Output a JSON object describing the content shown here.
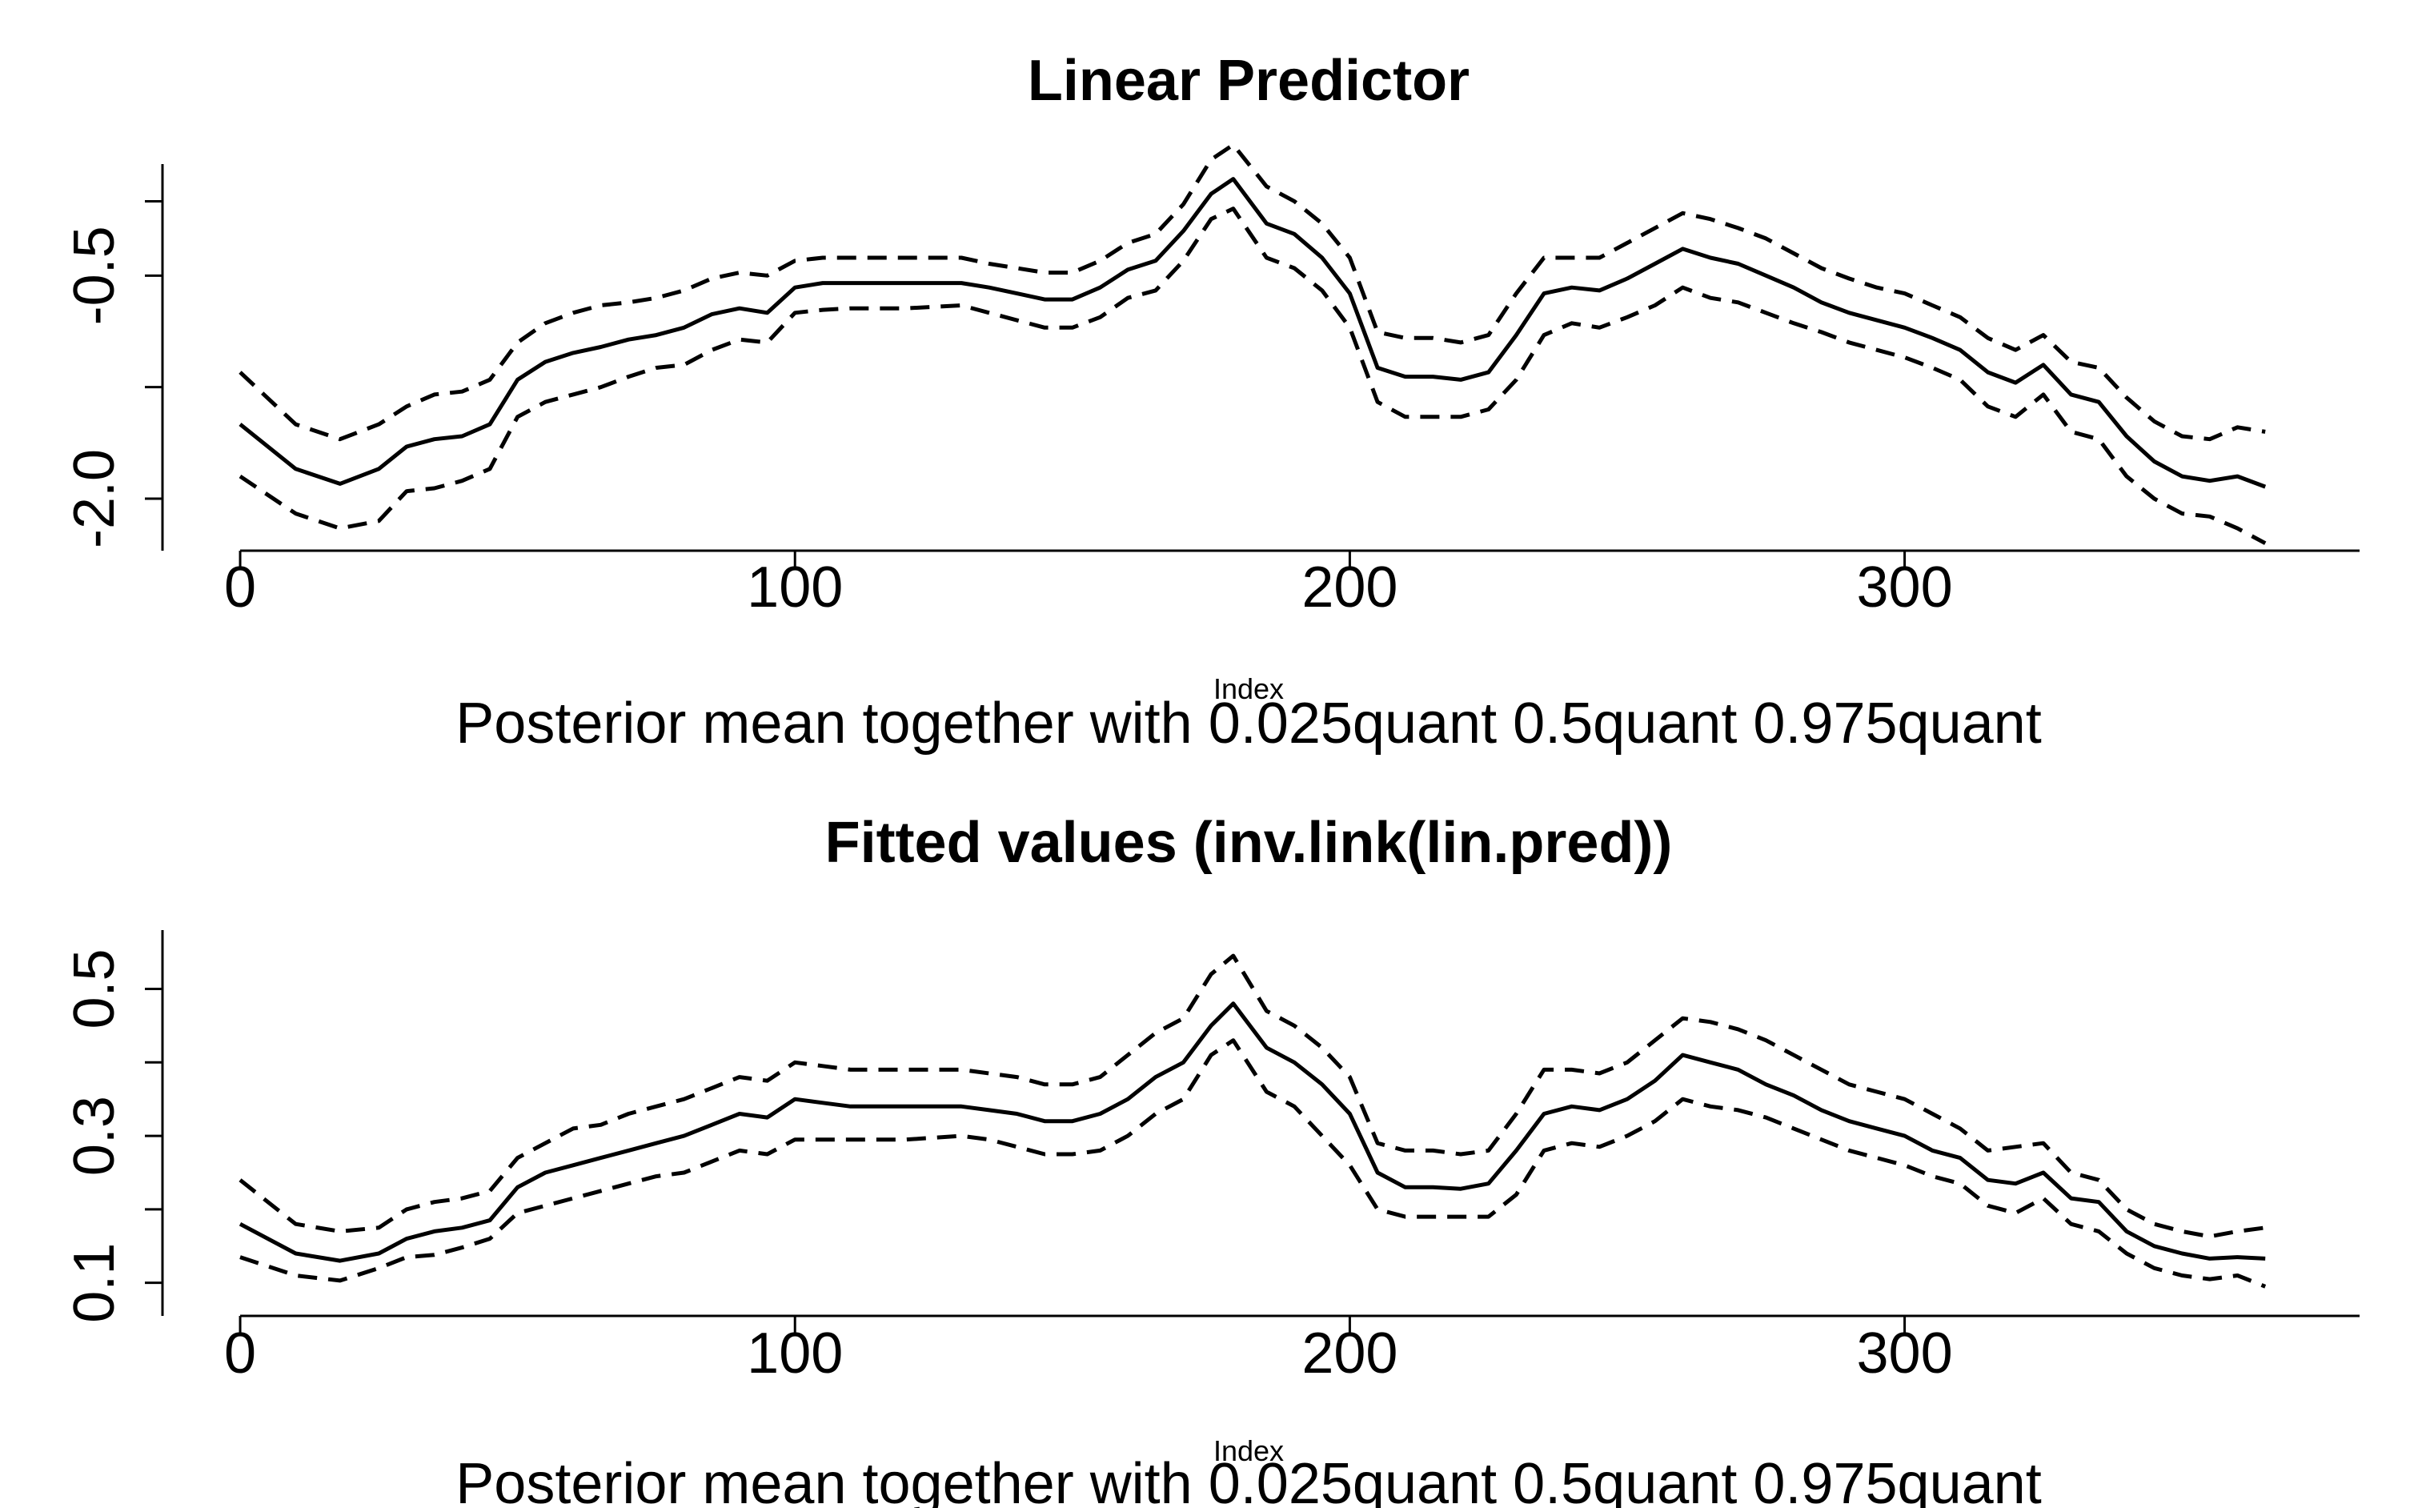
{
  "chart_data": [
    {
      "type": "line",
      "title": "Linear Predictor",
      "xlabel": "Index",
      "subtitle": "Posterior mean together with  0.025quant 0.5quant 0.975quant",
      "ylabel": "",
      "xlim": [
        -14,
        382
      ],
      "ylim": [
        -2.35,
        0.25
      ],
      "x_ticks": [
        0,
        100,
        200,
        300
      ],
      "y_ticks": [
        -2.0,
        -1.25,
        -0.5,
        0.0
      ],
      "y_tick_labels": [
        "-2.0",
        "",
        "-0.5",
        ""
      ],
      "grid": false,
      "x": [
        0,
        10,
        18,
        25,
        30,
        35,
        40,
        45,
        50,
        55,
        60,
        65,
        70,
        75,
        80,
        85,
        90,
        95,
        100,
        105,
        110,
        120,
        130,
        135,
        140,
        145,
        150,
        155,
        160,
        165,
        170,
        175,
        179,
        185,
        190,
        195,
        200,
        205,
        210,
        215,
        220,
        225,
        230,
        235,
        240,
        245,
        250,
        255,
        260,
        265,
        270,
        275,
        280,
        285,
        290,
        295,
        300,
        305,
        310,
        315,
        320,
        325,
        330,
        335,
        340,
        345,
        350,
        355,
        360,
        365
      ],
      "series": [
        {
          "name": "0.025quant",
          "style": "dashed",
          "values": [
            -1.85,
            -2.1,
            -2.2,
            -2.15,
            -1.95,
            -1.93,
            -1.88,
            -1.8,
            -1.45,
            -1.35,
            -1.3,
            -1.25,
            -1.18,
            -1.12,
            -1.1,
            -1.0,
            -0.93,
            -0.95,
            -0.75,
            -0.73,
            -0.72,
            -0.72,
            -0.7,
            -0.75,
            -0.8,
            -0.85,
            -0.85,
            -0.78,
            -0.65,
            -0.6,
            -0.4,
            -0.12,
            -0.05,
            -0.38,
            -0.45,
            -0.6,
            -0.85,
            -1.35,
            -1.45,
            -1.45,
            -1.45,
            -1.4,
            -1.2,
            -0.9,
            -0.82,
            -0.85,
            -0.78,
            -0.7,
            -0.58,
            -0.65,
            -0.68,
            -0.75,
            -0.82,
            -0.88,
            -0.95,
            -1.0,
            -1.05,
            -1.12,
            -1.2,
            -1.38,
            -1.45,
            -1.3,
            -1.55,
            -1.6,
            -1.85,
            -2.0,
            -2.1,
            -2.12,
            -2.2,
            -2.3
          ]
        },
        {
          "name": "0.5quant",
          "style": "solid",
          "values": [
            -1.5,
            -1.8,
            -1.9,
            -1.8,
            -1.65,
            -1.6,
            -1.58,
            -1.5,
            -1.2,
            -1.08,
            -1.02,
            -0.98,
            -0.93,
            -0.9,
            -0.85,
            -0.76,
            -0.72,
            -0.75,
            -0.58,
            -0.55,
            -0.55,
            -0.55,
            -0.55,
            -0.58,
            -0.62,
            -0.66,
            -0.66,
            -0.58,
            -0.46,
            -0.4,
            -0.2,
            0.05,
            0.15,
            -0.15,
            -0.22,
            -0.38,
            -0.62,
            -1.12,
            -1.18,
            -1.18,
            -1.2,
            -1.15,
            -0.9,
            -0.62,
            -0.58,
            -0.6,
            -0.52,
            -0.42,
            -0.32,
            -0.38,
            -0.42,
            -0.5,
            -0.58,
            -0.68,
            -0.75,
            -0.8,
            -0.85,
            -0.92,
            -1.0,
            -1.15,
            -1.22,
            -1.1,
            -1.3,
            -1.35,
            -1.58,
            -1.75,
            -1.85,
            -1.88,
            -1.85,
            -1.92
          ]
        },
        {
          "name": "0.975quant",
          "style": "dashed",
          "values": [
            -1.15,
            -1.5,
            -1.6,
            -1.5,
            -1.38,
            -1.3,
            -1.28,
            -1.2,
            -0.95,
            -0.82,
            -0.75,
            -0.7,
            -0.68,
            -0.65,
            -0.6,
            -0.52,
            -0.48,
            -0.5,
            -0.4,
            -0.38,
            -0.38,
            -0.38,
            -0.38,
            -0.42,
            -0.45,
            -0.48,
            -0.48,
            -0.4,
            -0.28,
            -0.22,
            -0.02,
            0.28,
            0.38,
            0.1,
            0.0,
            -0.15,
            -0.38,
            -0.88,
            -0.92,
            -0.92,
            -0.95,
            -0.9,
            -0.62,
            -0.38,
            -0.38,
            -0.38,
            -0.28,
            -0.18,
            -0.08,
            -0.12,
            -0.18,
            -0.25,
            -0.35,
            -0.45,
            -0.52,
            -0.58,
            -0.62,
            -0.7,
            -0.78,
            -0.92,
            -1.0,
            -0.9,
            -1.08,
            -1.12,
            -1.32,
            -1.48,
            -1.58,
            -1.6,
            -1.52,
            -1.55
          ]
        }
      ]
    },
    {
      "type": "line",
      "title": "Fitted values (inv.link(lin.pred))",
      "xlabel": "Index",
      "subtitle": "Posterior mean together with  0.025quant 0.5quant 0.975quant",
      "ylabel": "",
      "xlim": [
        -14,
        382
      ],
      "ylim": [
        0.055,
        0.58
      ],
      "x_ticks": [
        0,
        100,
        200,
        300
      ],
      "y_ticks": [
        0.1,
        0.2,
        0.3,
        0.4,
        0.5
      ],
      "y_tick_labels": [
        "0.1",
        "",
        "0.3",
        "",
        "0.5"
      ],
      "grid": false,
      "x": [
        0,
        10,
        18,
        25,
        30,
        35,
        40,
        45,
        50,
        55,
        60,
        65,
        70,
        75,
        80,
        85,
        90,
        95,
        100,
        105,
        110,
        120,
        130,
        135,
        140,
        145,
        150,
        155,
        160,
        165,
        170,
        175,
        179,
        185,
        190,
        195,
        200,
        205,
        210,
        215,
        220,
        225,
        230,
        235,
        240,
        245,
        250,
        255,
        260,
        265,
        270,
        275,
        280,
        285,
        290,
        295,
        300,
        305,
        310,
        315,
        320,
        325,
        330,
        335,
        340,
        345,
        350,
        355,
        360,
        365
      ],
      "series": [
        {
          "name": "0.025quant",
          "style": "dashed",
          "values": [
            0.135,
            0.11,
            0.103,
            0.12,
            0.135,
            0.138,
            0.148,
            0.16,
            0.195,
            0.205,
            0.215,
            0.225,
            0.235,
            0.245,
            0.25,
            0.265,
            0.28,
            0.275,
            0.295,
            0.295,
            0.295,
            0.295,
            0.3,
            0.295,
            0.285,
            0.275,
            0.275,
            0.28,
            0.3,
            0.33,
            0.35,
            0.41,
            0.43,
            0.36,
            0.34,
            0.3,
            0.26,
            0.2,
            0.19,
            0.19,
            0.19,
            0.19,
            0.22,
            0.28,
            0.29,
            0.285,
            0.3,
            0.32,
            0.35,
            0.34,
            0.335,
            0.325,
            0.31,
            0.295,
            0.28,
            0.27,
            0.26,
            0.245,
            0.235,
            0.205,
            0.195,
            0.215,
            0.18,
            0.17,
            0.14,
            0.12,
            0.11,
            0.105,
            0.11,
            0.095
          ]
        },
        {
          "name": "0.5quant",
          "style": "solid",
          "values": [
            0.18,
            0.14,
            0.13,
            0.14,
            0.16,
            0.17,
            0.175,
            0.185,
            0.23,
            0.25,
            0.26,
            0.27,
            0.28,
            0.29,
            0.3,
            0.315,
            0.33,
            0.325,
            0.35,
            0.345,
            0.34,
            0.34,
            0.34,
            0.335,
            0.33,
            0.32,
            0.32,
            0.33,
            0.35,
            0.38,
            0.4,
            0.45,
            0.48,
            0.42,
            0.4,
            0.37,
            0.33,
            0.25,
            0.23,
            0.23,
            0.228,
            0.235,
            0.28,
            0.33,
            0.34,
            0.335,
            0.35,
            0.375,
            0.41,
            0.4,
            0.39,
            0.37,
            0.355,
            0.335,
            0.32,
            0.31,
            0.3,
            0.28,
            0.27,
            0.24,
            0.235,
            0.25,
            0.215,
            0.21,
            0.17,
            0.15,
            0.14,
            0.133,
            0.135,
            0.133
          ]
        },
        {
          "name": "0.975quant",
          "style": "dashed",
          "values": [
            0.24,
            0.18,
            0.17,
            0.175,
            0.2,
            0.21,
            0.215,
            0.225,
            0.27,
            0.29,
            0.31,
            0.315,
            0.33,
            0.34,
            0.35,
            0.365,
            0.38,
            0.375,
            0.4,
            0.395,
            0.39,
            0.39,
            0.39,
            0.385,
            0.38,
            0.37,
            0.37,
            0.38,
            0.41,
            0.44,
            0.46,
            0.52,
            0.545,
            0.47,
            0.45,
            0.42,
            0.38,
            0.29,
            0.28,
            0.28,
            0.275,
            0.28,
            0.33,
            0.39,
            0.39,
            0.385,
            0.4,
            0.43,
            0.46,
            0.455,
            0.445,
            0.43,
            0.41,
            0.39,
            0.37,
            0.36,
            0.35,
            0.33,
            0.31,
            0.28,
            0.285,
            0.29,
            0.25,
            0.24,
            0.2,
            0.18,
            0.17,
            0.163,
            0.17,
            0.175
          ]
        }
      ]
    }
  ]
}
